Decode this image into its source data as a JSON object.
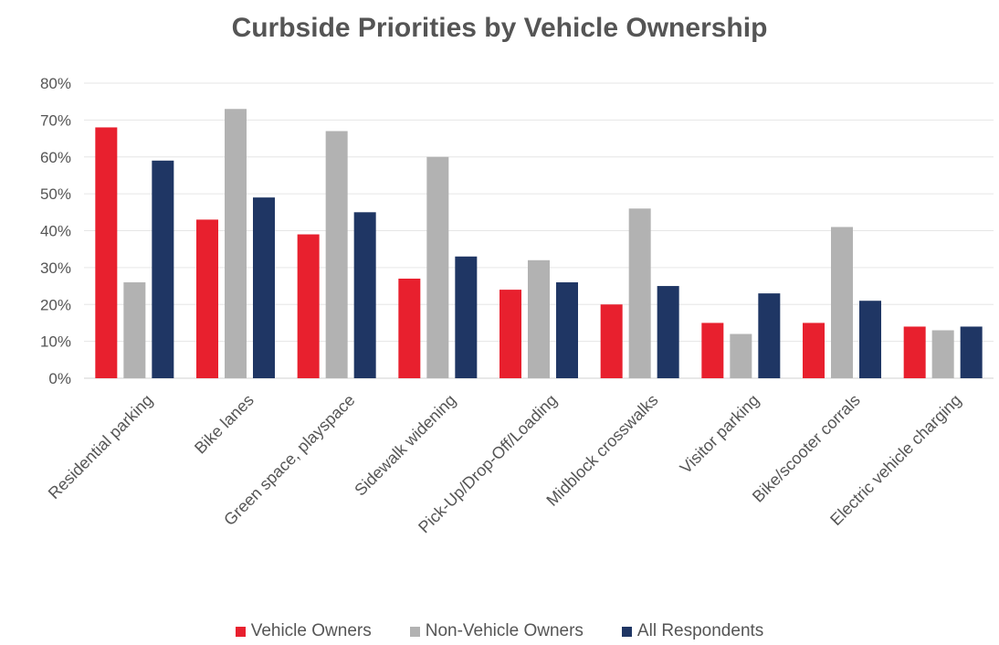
{
  "chart_data": {
    "type": "bar",
    "title": "Curbside Priorities by Vehicle Ownership",
    "xlabel": "",
    "ylabel": "",
    "ylim": [
      0,
      80
    ],
    "yticks": [
      "0%",
      "10%",
      "20%",
      "30%",
      "40%",
      "50%",
      "60%",
      "70%",
      "80%"
    ],
    "grid": true,
    "legend_position": "bottom",
    "categories": [
      "Residential parking",
      "Bike lanes",
      "Green space, playspace",
      "Sidewalk widening",
      "Pick-Up/Drop-Off/Loading",
      "Midblock crosswalks",
      "Visitor parking",
      "Bike/scooter corrals",
      "Electric vehicle charging"
    ],
    "series": [
      {
        "name": "Vehicle Owners",
        "color": "#e8202e",
        "values": [
          68,
          43,
          39,
          27,
          24,
          20,
          15,
          15,
          14
        ]
      },
      {
        "name": "Non-Vehicle Owners",
        "color": "#b2b2b2",
        "values": [
          26,
          73,
          67,
          60,
          32,
          46,
          12,
          41,
          13
        ]
      },
      {
        "name": "All Respondents",
        "color": "#1f3664",
        "values": [
          59,
          49,
          45,
          33,
          26,
          25,
          23,
          21,
          14
        ]
      }
    ]
  }
}
